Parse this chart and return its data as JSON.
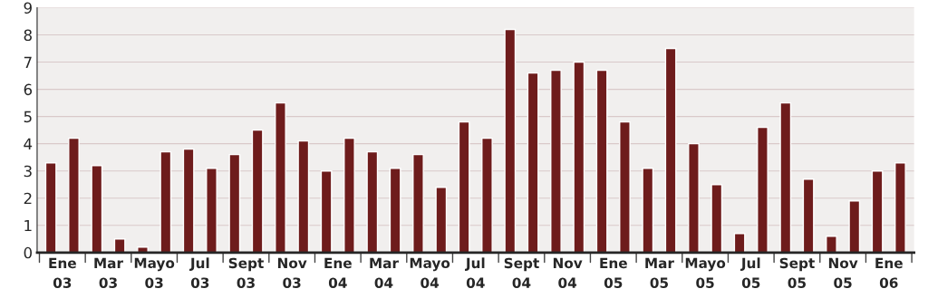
{
  "chart_data": {
    "type": "bar",
    "categories": [
      "Ene\n03",
      null,
      "Mar\n03",
      null,
      "Mayo\n03",
      null,
      "Jul\n03",
      null,
      "Sept\n03",
      null,
      "Nov\n03",
      null,
      "Ene\n04",
      null,
      "Mar\n04",
      null,
      "Mayo\n04",
      null,
      "Jul\n04",
      null,
      "Sept\n04",
      null,
      "Nov\n04",
      null,
      "Ene\n05",
      null,
      "Mar\n05",
      null,
      "Mayo\n05",
      null,
      "Jul\n05",
      null,
      "Sept\n05",
      null,
      "Nov\n05",
      null,
      "Ene\n06",
      null
    ],
    "values": [
      3.3,
      4.2,
      3.2,
      0.5,
      0.2,
      3.7,
      3.8,
      3.1,
      3.6,
      4.5,
      5.5,
      4.1,
      3.0,
      4.2,
      3.7,
      3.1,
      3.6,
      2.4,
      4.8,
      4.2,
      8.2,
      6.6,
      6.7,
      7.0,
      6.7,
      4.8,
      3.1,
      7.5,
      4.0,
      2.5,
      0.7,
      4.6,
      5.5,
      2.7,
      0.6,
      1.9,
      3.0,
      3.3
    ],
    "color": "#6e1c1c",
    "ylim": [
      0,
      9
    ],
    "yticks": [
      0,
      1,
      2,
      3,
      4,
      5,
      6,
      7,
      8,
      9
    ],
    "grid": "y"
  }
}
